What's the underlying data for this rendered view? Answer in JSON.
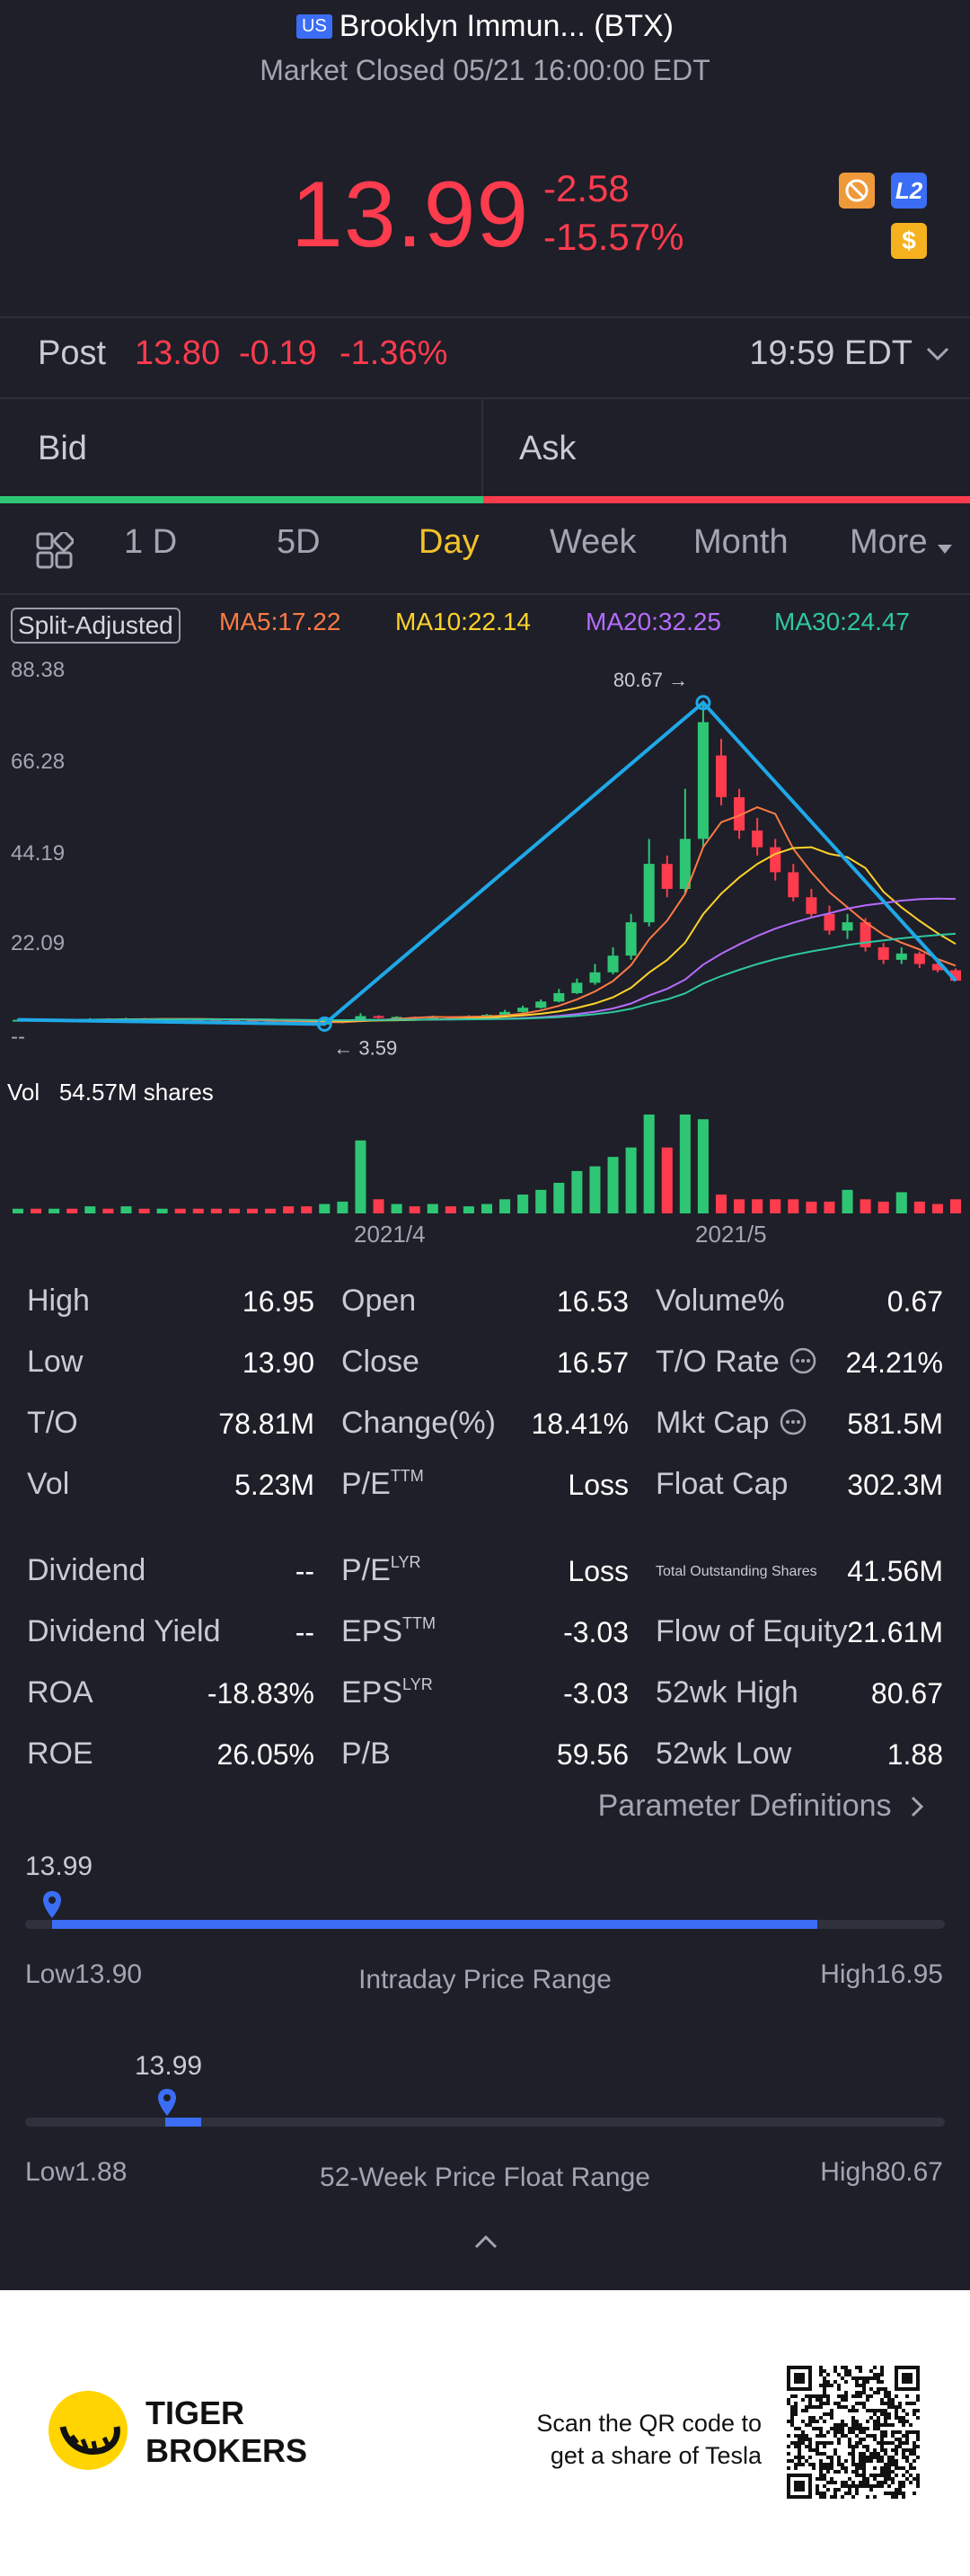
{
  "header": {
    "market_badge": "US",
    "title": "Brooklyn Immun... (BTX)",
    "status": "Market Closed 05/21 16:00:00 EDT"
  },
  "quote": {
    "price": "13.99",
    "change": "-2.58",
    "change_pct": "-15.57%",
    "icon_l2": "L2",
    "icon_dollar": "$"
  },
  "post": {
    "label": "Post",
    "price": "13.80",
    "change": "-0.19",
    "change_pct": "-1.36%",
    "time": "19:59 EDT"
  },
  "orderbook": {
    "bid": "Bid",
    "ask": "Ask"
  },
  "tabs": [
    "1 D",
    "5D",
    "Day",
    "Week",
    "Month",
    "More"
  ],
  "active_tab": "Day",
  "chart": {
    "split_label": "Split-Adjusted",
    "ma5": "MA5:17.22",
    "ma10": "MA10:22.14",
    "ma20": "MA20:32.25",
    "ma30": "MA30:24.47",
    "y_ticks": [
      "88.38",
      "66.28",
      "44.19",
      "22.09",
      "--"
    ],
    "high_marker": "80.67",
    "low_marker": "3.59",
    "vol_label": "Vol",
    "vol_value": "54.57M shares",
    "x_ticks": [
      "2021/4",
      "2021/5"
    ],
    "colors": {
      "up": "#2ec675",
      "down": "#ff3b4e",
      "ma5": "#ff7a45",
      "ma10": "#ffd22a",
      "ma20": "#b66bff",
      "ma30": "#2fc7a0",
      "line": "#1fa8e8"
    }
  },
  "chart_data": {
    "type": "candlestick",
    "categories_note": "daily",
    "x_ticks": [
      "2021/4",
      "2021/5"
    ],
    "ylim": [
      0,
      88.38
    ],
    "y_ticks": [
      88.38,
      66.28,
      44.19,
      22.09
    ],
    "high": 80.67,
    "low": 3.59,
    "ma": {
      "MA5": 17.22,
      "MA10": 22.14,
      "MA20": 32.25,
      "MA30": 24.47
    },
    "volume_label": "54.57M shares",
    "candles": [
      {
        "o": 4.4,
        "c": 4.6,
        "h": 4.9,
        "l": 4.2,
        "v": 0.2
      },
      {
        "o": 4.6,
        "c": 4.5,
        "h": 4.8,
        "l": 4.3,
        "v": 0.2
      },
      {
        "o": 4.5,
        "c": 4.7,
        "h": 4.9,
        "l": 4.4,
        "v": 0.2
      },
      {
        "o": 4.7,
        "c": 4.6,
        "h": 4.9,
        "l": 4.4,
        "v": 0.2
      },
      {
        "o": 4.6,
        "c": 4.8,
        "h": 5.0,
        "l": 4.5,
        "v": 0.3
      },
      {
        "o": 4.8,
        "c": 4.7,
        "h": 5.0,
        "l": 4.6,
        "v": 0.2
      },
      {
        "o": 4.7,
        "c": 4.9,
        "h": 5.1,
        "l": 4.6,
        "v": 0.3
      },
      {
        "o": 4.9,
        "c": 4.8,
        "h": 5.1,
        "l": 4.7,
        "v": 0.2
      },
      {
        "o": 4.8,
        "c": 4.9,
        "h": 5.0,
        "l": 4.6,
        "v": 0.2
      },
      {
        "o": 4.9,
        "c": 4.8,
        "h": 5.0,
        "l": 4.7,
        "v": 0.2
      },
      {
        "o": 4.8,
        "c": 4.7,
        "h": 4.9,
        "l": 4.5,
        "v": 0.2
      },
      {
        "o": 4.7,
        "c": 4.6,
        "h": 4.8,
        "l": 4.4,
        "v": 0.2
      },
      {
        "o": 4.6,
        "c": 4.5,
        "h": 4.7,
        "l": 4.3,
        "v": 0.2
      },
      {
        "o": 4.5,
        "c": 4.4,
        "h": 4.6,
        "l": 4.2,
        "v": 0.2
      },
      {
        "o": 4.4,
        "c": 4.2,
        "h": 4.5,
        "l": 4.0,
        "v": 0.2
      },
      {
        "o": 4.2,
        "c": 4.0,
        "h": 4.3,
        "l": 3.8,
        "v": 0.3
      },
      {
        "o": 4.0,
        "c": 3.8,
        "h": 4.1,
        "l": 3.6,
        "v": 0.3
      },
      {
        "o": 3.8,
        "c": 3.9,
        "h": 4.0,
        "l": 3.59,
        "v": 0.4
      },
      {
        "o": 3.9,
        "c": 4.3,
        "h": 4.4,
        "l": 3.8,
        "v": 0.5
      },
      {
        "o": 4.3,
        "c": 5.5,
        "h": 6.2,
        "l": 4.2,
        "v": 3.1
      },
      {
        "o": 5.5,
        "c": 5.1,
        "h": 5.7,
        "l": 4.9,
        "v": 0.6
      },
      {
        "o": 5.1,
        "c": 5.3,
        "h": 5.5,
        "l": 5.0,
        "v": 0.4
      },
      {
        "o": 5.3,
        "c": 5.2,
        "h": 5.4,
        "l": 5.0,
        "v": 0.3
      },
      {
        "o": 5.2,
        "c": 5.4,
        "h": 5.6,
        "l": 5.1,
        "v": 0.4
      },
      {
        "o": 5.4,
        "c": 5.2,
        "h": 5.5,
        "l": 5.0,
        "v": 0.3
      },
      {
        "o": 5.2,
        "c": 5.5,
        "h": 5.7,
        "l": 5.1,
        "v": 0.3
      },
      {
        "o": 5.5,
        "c": 5.8,
        "h": 6.0,
        "l": 5.4,
        "v": 0.4
      },
      {
        "o": 5.8,
        "c": 6.5,
        "h": 7.0,
        "l": 5.7,
        "v": 0.6
      },
      {
        "o": 6.5,
        "c": 7.5,
        "h": 8.0,
        "l": 6.3,
        "v": 0.8
      },
      {
        "o": 7.5,
        "c": 9.0,
        "h": 9.5,
        "l": 7.3,
        "v": 1.0
      },
      {
        "o": 9.0,
        "c": 11.0,
        "h": 12.0,
        "l": 8.8,
        "v": 1.3
      },
      {
        "o": 11.0,
        "c": 13.5,
        "h": 14.5,
        "l": 10.8,
        "v": 1.8
      },
      {
        "o": 13.5,
        "c": 16.0,
        "h": 18.0,
        "l": 13.0,
        "v": 2.0
      },
      {
        "o": 16.0,
        "c": 20.0,
        "h": 22.0,
        "l": 15.5,
        "v": 2.4
      },
      {
        "o": 20.0,
        "c": 28.0,
        "h": 30.0,
        "l": 19.0,
        "v": 2.8
      },
      {
        "o": 28.0,
        "c": 42.0,
        "h": 48.0,
        "l": 27.0,
        "v": 4.2
      },
      {
        "o": 42.0,
        "c": 36.0,
        "h": 44.0,
        "l": 34.0,
        "v": 2.8
      },
      {
        "o": 36.0,
        "c": 48.0,
        "h": 60.0,
        "l": 35.0,
        "v": 4.2
      },
      {
        "o": 48.0,
        "c": 76.0,
        "h": 80.67,
        "l": 46.0,
        "v": 4.0
      },
      {
        "o": 68.0,
        "c": 58.0,
        "h": 72.0,
        "l": 56.0,
        "v": 0.8
      },
      {
        "o": 58.0,
        "c": 50.0,
        "h": 60.0,
        "l": 48.0,
        "v": 0.6
      },
      {
        "o": 50.0,
        "c": 46.0,
        "h": 53.0,
        "l": 44.0,
        "v": 0.6
      },
      {
        "o": 46.0,
        "c": 40.0,
        "h": 48.0,
        "l": 38.0,
        "v": 0.6
      },
      {
        "o": 40.0,
        "c": 34.0,
        "h": 42.0,
        "l": 33.0,
        "v": 0.6
      },
      {
        "o": 34.0,
        "c": 30.0,
        "h": 36.0,
        "l": 29.0,
        "v": 0.5
      },
      {
        "o": 30.0,
        "c": 26.0,
        "h": 32.0,
        "l": 25.0,
        "v": 0.5
      },
      {
        "o": 26.0,
        "c": 28.0,
        "h": 30.0,
        "l": 24.0,
        "v": 1.0
      },
      {
        "o": 28.0,
        "c": 22.0,
        "h": 29.0,
        "l": 21.0,
        "v": 0.6
      },
      {
        "o": 22.0,
        "c": 19.0,
        "h": 23.0,
        "l": 18.0,
        "v": 0.5
      },
      {
        "o": 19.0,
        "c": 20.5,
        "h": 22.0,
        "l": 18.0,
        "v": 0.9
      },
      {
        "o": 20.5,
        "c": 18.0,
        "h": 21.0,
        "l": 17.0,
        "v": 0.5
      },
      {
        "o": 18.0,
        "c": 16.5,
        "h": 19.0,
        "l": 16.0,
        "v": 0.4
      },
      {
        "o": 16.5,
        "c": 13.99,
        "h": 16.95,
        "l": 13.9,
        "v": 0.6
      }
    ]
  },
  "stats": {
    "col1": [
      {
        "label": "High",
        "value": "16.95"
      },
      {
        "label": "Low",
        "value": "13.90"
      },
      {
        "label": "T/O",
        "value": "78.81M"
      },
      {
        "label": "Vol",
        "value": "5.23M"
      },
      {
        "label": "Dividend",
        "value": "--"
      },
      {
        "label": "Dividend Yield",
        "value": "--"
      },
      {
        "label": "ROA",
        "value": "-18.83%"
      },
      {
        "label": "ROE",
        "value": "26.05%"
      }
    ],
    "col2": [
      {
        "label": "Open",
        "sup": "",
        "value": "16.53"
      },
      {
        "label": "Close",
        "sup": "",
        "value": "16.57"
      },
      {
        "label": "Change(%)",
        "sup": "",
        "value": "18.41%"
      },
      {
        "label": "P/E",
        "sup": "TTM",
        "value": "Loss"
      },
      {
        "label": "P/E",
        "sup": "LYR",
        "value": "Loss"
      },
      {
        "label": "EPS",
        "sup": "TTM",
        "value": "-3.03"
      },
      {
        "label": "EPS",
        "sup": "LYR",
        "value": "-3.03"
      },
      {
        "label": "P/B",
        "sup": "",
        "value": "59.56"
      }
    ],
    "col3": [
      {
        "label": "Volume%",
        "value": "0.67"
      },
      {
        "label": "T/O Rate",
        "value": "24.21%"
      },
      {
        "label": "Mkt Cap",
        "value": "581.5M"
      },
      {
        "label": "Float Cap",
        "value": "302.3M"
      },
      {
        "label": "Total Outstanding Shares",
        "value": "41.56M"
      },
      {
        "label": "Flow of Equity",
        "value": "21.61M"
      },
      {
        "label": "52wk High",
        "value": "80.67"
      },
      {
        "label": "52wk Low",
        "value": "1.88"
      }
    ],
    "param_defs": "Parameter Definitions"
  },
  "ranges": {
    "intraday": {
      "current": "13.99",
      "low_label": "Low13.90",
      "high_label": "High16.95",
      "title": "Intraday Price Range",
      "marker_fraction": 0.03,
      "fill_fraction": 0.87
    },
    "week52": {
      "current": "13.99",
      "low_label": "Low1.88",
      "high_label": "High80.67",
      "title": "52-Week Price Float Range",
      "marker_fraction": 0.154
    }
  },
  "footer": {
    "brand_line1": "TIGER",
    "brand_line2": "BROKERS",
    "qr_line1": "Scan the QR code to",
    "qr_line2": "get a share of Tesla"
  }
}
